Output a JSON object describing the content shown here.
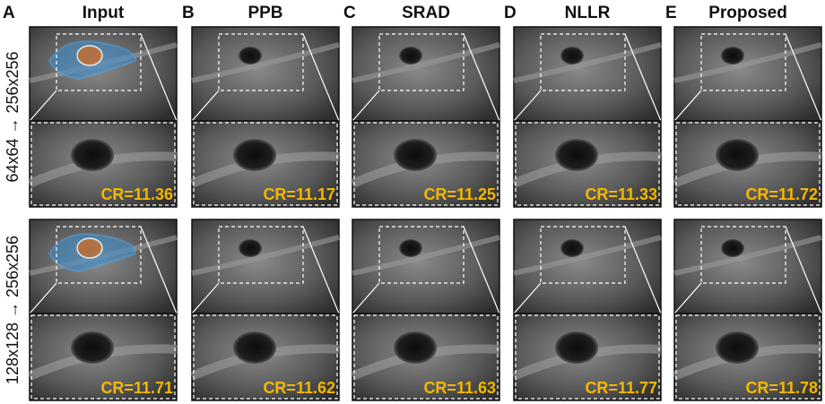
{
  "columns": [
    {
      "letter": "A",
      "title": "Input"
    },
    {
      "letter": "B",
      "title": "PPB"
    },
    {
      "letter": "C",
      "title": "SRAD"
    },
    {
      "letter": "D",
      "title": "NLLR"
    },
    {
      "letter": "E",
      "title": "Proposed"
    }
  ],
  "rows": [
    {
      "label": "64x64 → 256x256",
      "cr": [
        "CR=11.36",
        "CR=11.17",
        "CR=11.25",
        "CR=11.33",
        "CR=11.72"
      ]
    },
    {
      "label": "128x128 → 256x256",
      "cr": [
        "CR=11.71",
        "CR=11.62",
        "CR=11.63",
        "CR=11.77",
        "CR=11.78"
      ]
    }
  ]
}
